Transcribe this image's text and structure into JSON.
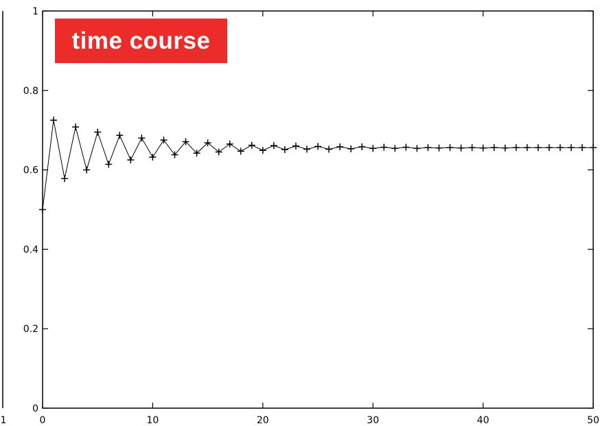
{
  "chart_data": {
    "type": "line",
    "title": "time course",
    "xlabel": "",
    "ylabel": "",
    "xlim": [
      0,
      50
    ],
    "ylim": [
      0,
      1
    ],
    "x_ticks": [
      "0",
      "10",
      "20",
      "30",
      "40",
      "50"
    ],
    "y_ticks": [
      "0",
      "0.2",
      "0.4",
      "0.6",
      "0.8",
      "1"
    ],
    "left_panel_tick": "1",
    "grid": false,
    "legend": "none",
    "marker": "plus",
    "line_color": "#000000",
    "series": [
      {
        "x": [
          0,
          1,
          2,
          3,
          4,
          5,
          6,
          7,
          8,
          9,
          10,
          11,
          12,
          13,
          14,
          15,
          16,
          17,
          18,
          19,
          20,
          21,
          22,
          23,
          24,
          25,
          26,
          27,
          28,
          29,
          30,
          31,
          32,
          33,
          34,
          35,
          36,
          37,
          38,
          39,
          40,
          41,
          42,
          43,
          44,
          45,
          46,
          47,
          48,
          49,
          50
        ],
        "values": [
          0.5,
          0.725,
          0.578,
          0.708,
          0.6,
          0.695,
          0.614,
          0.687,
          0.625,
          0.68,
          0.632,
          0.675,
          0.638,
          0.671,
          0.642,
          0.668,
          0.645,
          0.665,
          0.647,
          0.662,
          0.649,
          0.661,
          0.651,
          0.66,
          0.652,
          0.659,
          0.652,
          0.658,
          0.653,
          0.658,
          0.654,
          0.657,
          0.654,
          0.657,
          0.654,
          0.656,
          0.655,
          0.656,
          0.655,
          0.656,
          0.655,
          0.656,
          0.655,
          0.656,
          0.656,
          0.656,
          0.656,
          0.656,
          0.656,
          0.656,
          0.656
        ]
      }
    ]
  }
}
